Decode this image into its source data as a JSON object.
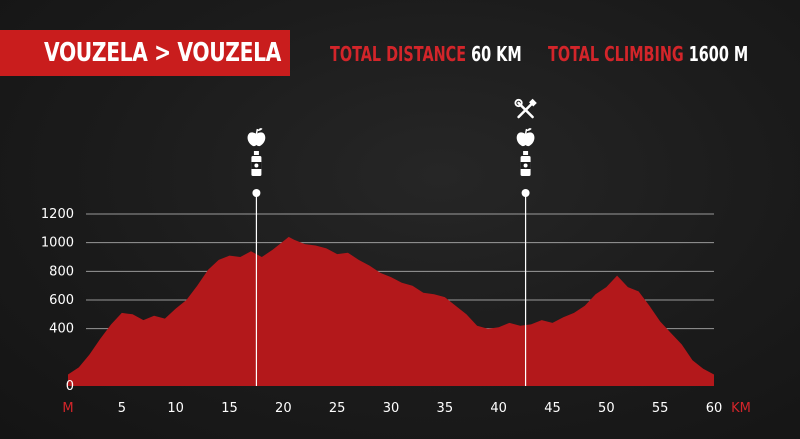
{
  "header": {
    "route": "VOUZELA > VOUZELA",
    "distance_label": "TOTAL DISTANCE",
    "distance_value": "60 KM",
    "climbing_label": "TOTAL CLIMBING",
    "climbing_value": "1600 M"
  },
  "colors": {
    "accent": "#c91d1d",
    "area": "#b3181b",
    "background": "#1b1b1b",
    "grid": "#ffffff"
  },
  "chart_data": {
    "type": "area",
    "title": "",
    "xlabel": "KM",
    "ylabel": "M",
    "xlim": [
      0,
      60
    ],
    "ylim": [
      0,
      1200
    ],
    "x_ticks": [
      5,
      10,
      15,
      20,
      25,
      30,
      35,
      40,
      45,
      50,
      55,
      60
    ],
    "y_ticks": [
      0,
      400,
      600,
      800,
      1000,
      1200
    ],
    "grid": true,
    "series": [
      {
        "x": [
          0,
          1,
          2,
          3,
          4,
          5,
          6,
          7,
          8,
          9,
          10,
          11,
          12,
          13,
          14,
          15,
          16,
          17,
          18,
          19,
          20,
          20.5,
          21,
          22,
          23,
          24,
          25,
          26,
          27,
          28,
          29,
          30,
          31,
          32,
          33,
          34,
          35,
          36,
          37,
          38,
          39,
          40,
          41,
          42,
          43,
          44,
          45,
          46,
          47,
          48,
          49,
          50,
          51,
          52,
          53,
          54,
          55,
          56,
          57,
          58,
          59,
          60
        ],
        "y": [
          80,
          130,
          220,
          330,
          430,
          510,
          500,
          460,
          490,
          470,
          540,
          600,
          700,
          810,
          880,
          910,
          900,
          940,
          900,
          950,
          1010,
          1040,
          1020,
          990,
          980,
          960,
          920,
          930,
          880,
          840,
          790,
          760,
          720,
          700,
          650,
          640,
          620,
          560,
          500,
          420,
          400,
          410,
          440,
          420,
          430,
          460,
          440,
          480,
          510,
          560,
          640,
          690,
          770,
          690,
          660,
          560,
          450,
          370,
          290,
          180,
          120,
          80
        ]
      }
    ],
    "markers": [
      {
        "km": 17.5,
        "icons": [
          "apple-icon",
          "bottle-icon"
        ]
      },
      {
        "km": 42.5,
        "icons": [
          "tools-icon",
          "apple-icon",
          "bottle-icon"
        ]
      }
    ]
  }
}
